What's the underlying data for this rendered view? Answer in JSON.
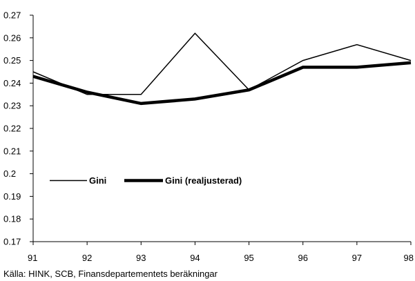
{
  "chart_data": {
    "type": "line",
    "x": [
      "91",
      "92",
      "93",
      "94",
      "95",
      "96",
      "97",
      "98"
    ],
    "series": [
      {
        "name": "Gini",
        "values": [
          0.245,
          0.235,
          0.235,
          0.262,
          0.237,
          0.25,
          0.257,
          0.25
        ],
        "color": "#000000",
        "line_weight": "thin"
      },
      {
        "name": "Gini (realjusterad)",
        "values": [
          0.243,
          0.236,
          0.231,
          0.233,
          0.237,
          0.247,
          0.247,
          0.249
        ],
        "color": "#000000",
        "line_weight": "thick"
      }
    ],
    "ylim": [
      0.17,
      0.27
    ],
    "yticks": [
      "0.17",
      "0.18",
      "0.19",
      "0.2",
      "0.21",
      "0.22",
      "0.23",
      "0.24",
      "0.25",
      "0.26",
      "0.27"
    ],
    "grid": false,
    "legend_position": "lower-left",
    "source": "Källa: HINK, SCB, Finansdepartementets beräkningar"
  }
}
